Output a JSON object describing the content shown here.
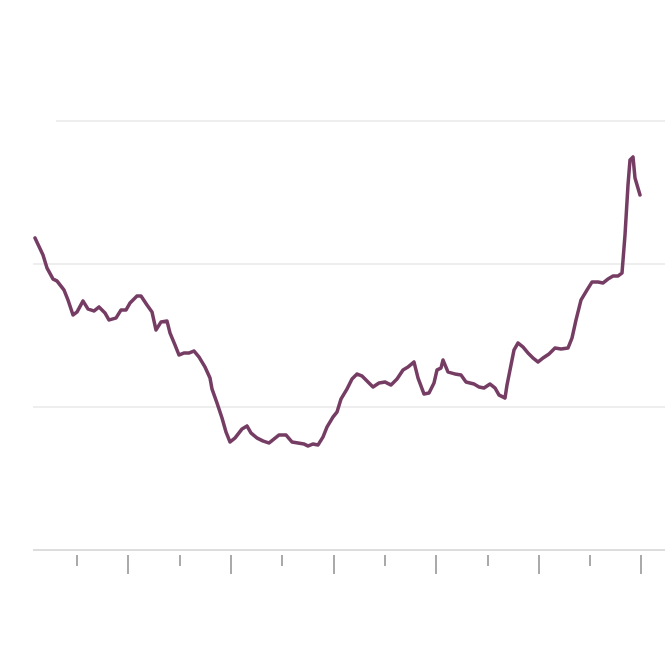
{
  "chart_data": {
    "type": "line",
    "x": [
      9,
      17,
      21,
      27,
      31,
      38,
      42,
      47,
      51,
      57,
      62,
      68,
      73,
      79,
      83,
      90,
      95,
      100,
      104,
      111,
      115,
      121,
      126,
      130,
      135,
      141,
      144,
      149,
      153,
      158,
      163,
      168,
      173,
      179,
      184,
      186,
      191,
      196,
      200,
      204,
      209,
      216,
      221,
      225,
      231,
      237,
      243,
      248,
      253,
      260,
      266,
      272,
      278,
      282,
      287,
      292,
      297,
      301,
      307,
      311,
      315,
      321,
      326,
      331,
      336,
      342,
      347,
      353,
      359,
      365,
      371,
      377,
      382,
      388,
      392,
      398,
      403,
      408,
      411,
      415,
      417,
      422,
      429,
      435,
      440,
      448,
      453,
      458,
      464,
      469,
      473,
      479,
      481,
      485,
      488,
      492,
      497,
      502,
      507,
      512,
      517,
      523,
      529,
      535,
      542,
      546,
      550,
      555,
      561,
      566,
      572,
      577,
      582,
      587,
      592,
      596,
      599,
      602,
      604,
      607,
      609,
      614
    ],
    "series": [
      {
        "color": "#763d64",
        "values": [
          312,
          295,
          282,
          271,
          269,
          260,
          250,
          235,
          238,
          249,
          241,
          239,
          243,
          237,
          230,
          232,
          240,
          240,
          247,
          254,
          254,
          245,
          238,
          220,
          228,
          229,
          217,
          205,
          195,
          197,
          197,
          199,
          193,
          183,
          172,
          161,
          147,
          132,
          118,
          108,
          112,
          121,
          124,
          117,
          112,
          109,
          107,
          111,
          115,
          115,
          108,
          107,
          106,
          104,
          106,
          105,
          113,
          123,
          133,
          138,
          151,
          161,
          171,
          176,
          174,
          168,
          163,
          167,
          168,
          165,
          171,
          180,
          183,
          188,
          172,
          156,
          157,
          167,
          180,
          182,
          190,
          178,
          176,
          175,
          168,
          166,
          163,
          162,
          166,
          162,
          155,
          152,
          165,
          185,
          200,
          207,
          203,
          197,
          192,
          188,
          192,
          196,
          202,
          201,
          202,
          212,
          230,
          250,
          260,
          268,
          268,
          267,
          271,
          274,
          274,
          277,
          315,
          365,
          390,
          393,
          372,
          355
        ]
      }
    ],
    "xlim": [
      0,
      641
    ],
    "xticks": [
      51,
      102,
      154,
      205,
      256,
      308,
      359,
      410,
      462,
      513,
      564,
      615
    ],
    "ylim": [
      0,
      550
    ],
    "yticks": [
      0,
      143,
      286,
      429
    ],
    "grid": true
  }
}
